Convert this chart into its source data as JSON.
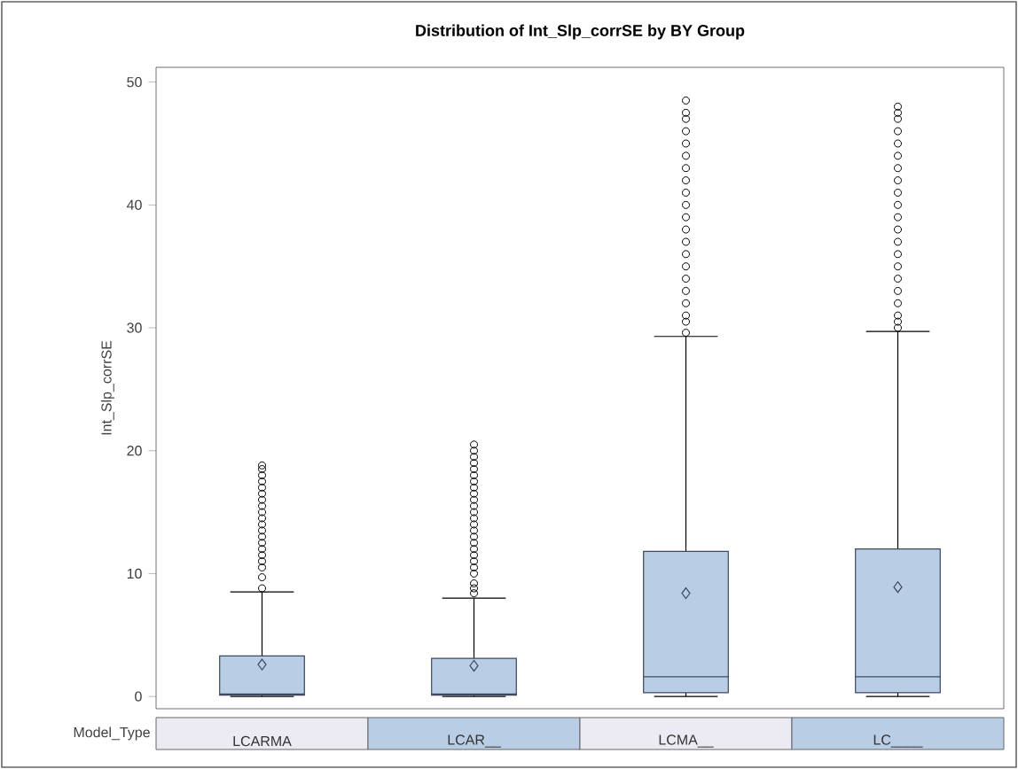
{
  "chart_data": {
    "type": "box",
    "title": "Distribution of Int_Slp_corrSE by BY Group",
    "xlabel": "Model_Type",
    "ylabel": "Int_Slp_corrSE",
    "categories": [
      "LCARMA",
      "LCAR__",
      "LCMA__",
      "LC____"
    ],
    "ylim": [
      -1,
      51.2
    ],
    "yticks": [
      0,
      10,
      20,
      30,
      40,
      50
    ],
    "series": [
      {
        "color": "#b9cde5",
        "boxes": [
          {
            "low": 0,
            "q1": 0.1,
            "median": 0.2,
            "q3": 3.3,
            "high": 8.5,
            "mean": 2.6,
            "outliers": [
              8.8,
              9.7,
              10.5,
              11,
              11.5,
              12,
              12.5,
              13,
              13.5,
              14,
              14.5,
              15,
              15.5,
              16,
              16.5,
              17,
              17.5,
              18,
              18.5,
              18.8
            ]
          },
          {
            "low": 0,
            "q1": 0.1,
            "median": 0.2,
            "q3": 3.1,
            "high": 8.0,
            "mean": 2.5,
            "outliers": [
              8.4,
              8.8,
              9.2,
              10,
              10.5,
              11,
              11.5,
              12,
              12.5,
              13,
              13.5,
              14,
              14.5,
              15,
              15.5,
              16,
              16.5,
              17,
              17.5,
              18,
              18.5,
              19,
              19.5,
              20,
              20.5
            ]
          },
          {
            "low": 0,
            "q1": 0.3,
            "median": 1.6,
            "q3": 11.8,
            "high": 29.3,
            "mean": 8.4,
            "outliers": [
              29.6,
              30.5,
              31,
              32,
              33,
              34,
              35,
              36,
              37,
              38,
              39,
              40,
              41,
              42,
              43,
              44,
              45,
              46,
              47,
              47.5,
              48.5
            ]
          },
          {
            "low": 0,
            "q1": 0.3,
            "median": 1.6,
            "q3": 12.0,
            "high": 29.7,
            "mean": 8.9,
            "outliers": [
              30,
              30.5,
              31,
              32,
              33,
              34,
              35,
              36,
              37,
              38,
              39,
              40,
              41,
              42,
              43,
              44,
              45,
              46,
              47,
              47.5,
              48
            ]
          }
        ]
      }
    ]
  }
}
